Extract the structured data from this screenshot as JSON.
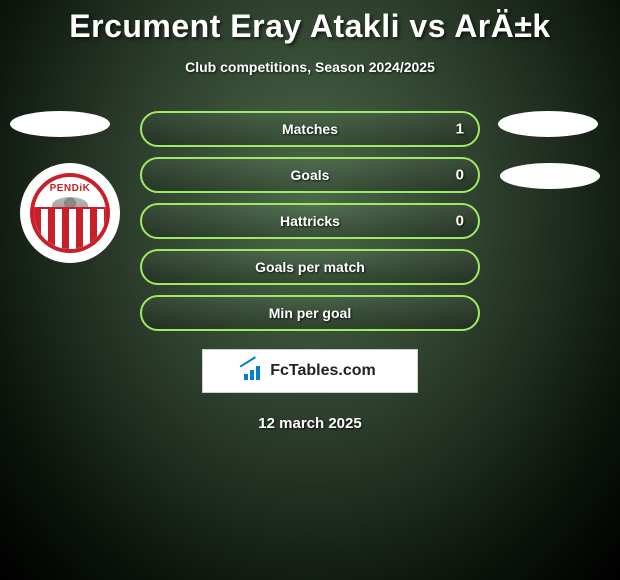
{
  "title": "Ercument Eray Atakli vs ArÄ±k",
  "subtitle": "Club competitions, Season 2024/2025",
  "stats": [
    {
      "label": "Matches",
      "value_right": "1"
    },
    {
      "label": "Goals",
      "value_right": "0"
    },
    {
      "label": "Hattricks",
      "value_right": "0"
    },
    {
      "label": "Goals per match",
      "value_right": ""
    },
    {
      "label": "Min per goal",
      "value_right": ""
    }
  ],
  "stat_row_style": {
    "border_color": "#9eea62",
    "label_color": "#ffffff",
    "value_color": "#ffffff"
  },
  "ovals_color": "#ffffff",
  "club_badge": {
    "top_text": "PENDiK",
    "primary_color": "#c8202a"
  },
  "brand": {
    "text_fc": "Fc",
    "text_rest": "Tables.com"
  },
  "date": "12 march 2025",
  "background": {
    "center_color": "#4a6a4a",
    "mid_color": "#2a3a2a",
    "edge_color": "#000000"
  }
}
